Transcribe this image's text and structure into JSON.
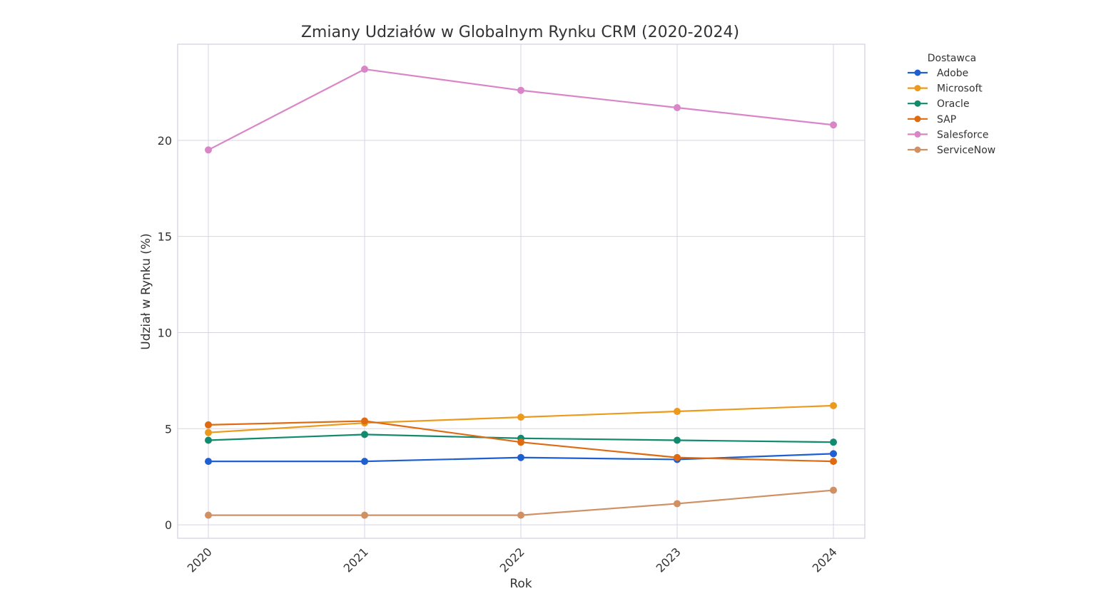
{
  "chart_data": {
    "type": "line",
    "title": "Zmiany Udziałów w Globalnym Rynku CRM (2020-2024)",
    "xlabel": "Rok",
    "ylabel": "Udział w Rynku (%)",
    "x": [
      "2020",
      "2021",
      "2022",
      "2023",
      "2024"
    ],
    "ylim": [
      -0.7,
      25.0
    ],
    "yticks": [
      0,
      5,
      10,
      15,
      20
    ],
    "grid": true,
    "legend": {
      "title": "Dostawca",
      "placement": "outside-top-right"
    },
    "series": [
      {
        "name": "Adobe",
        "color": "#1f5fd0",
        "values": [
          3.3,
          3.3,
          3.5,
          3.4,
          3.7
        ]
      },
      {
        "name": "Microsoft",
        "color": "#ec9a1c",
        "values": [
          4.8,
          5.3,
          5.6,
          5.9,
          6.2
        ]
      },
      {
        "name": "Oracle",
        "color": "#128a6e",
        "values": [
          4.4,
          4.7,
          4.5,
          4.4,
          4.3
        ]
      },
      {
        "name": "SAP",
        "color": "#de6a12",
        "values": [
          5.2,
          5.4,
          4.3,
          3.5,
          3.3
        ]
      },
      {
        "name": "Salesforce",
        "color": "#d986c8",
        "values": [
          19.5,
          23.7,
          22.6,
          21.7,
          20.8
        ]
      },
      {
        "name": "ServiceNow",
        "color": "#cf9163",
        "values": [
          0.5,
          0.5,
          0.5,
          1.1,
          1.8
        ]
      }
    ]
  }
}
